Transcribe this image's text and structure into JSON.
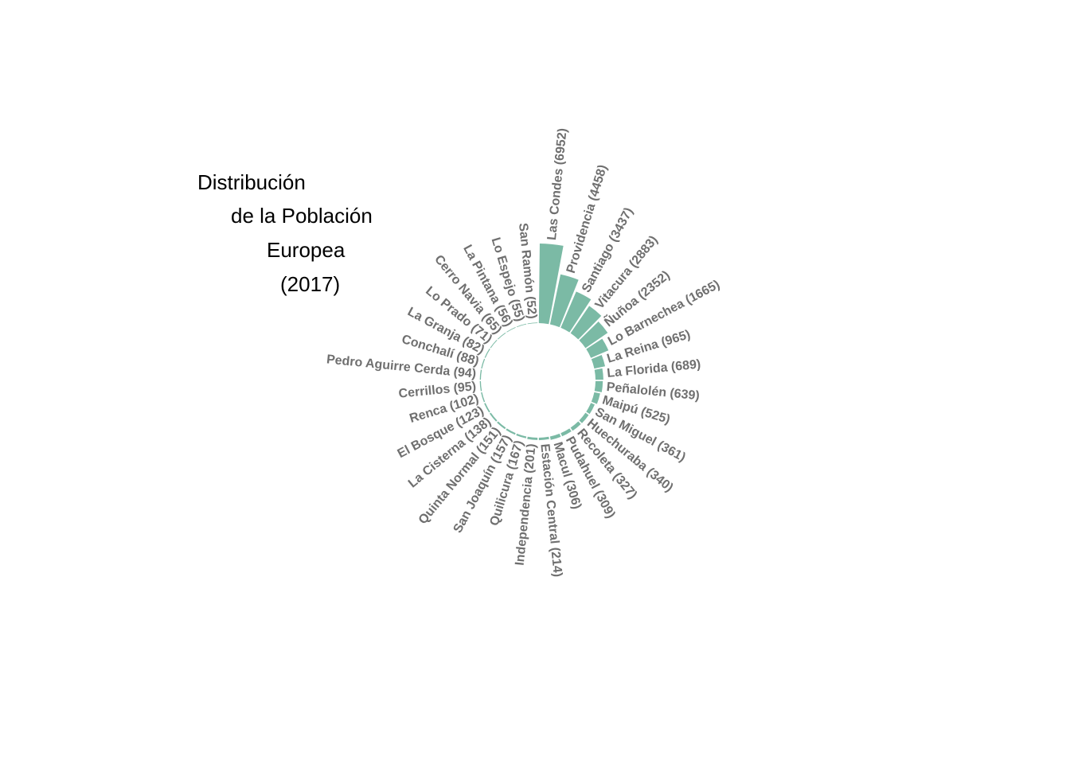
{
  "title_lines": [
    "Distribución",
    "de la Población",
    "Europea",
    "(2017)"
  ],
  "colors": {
    "bar": "#7bbaa5",
    "label": "#6f6f6f",
    "title": "#000000"
  },
  "chart_data": {
    "type": "bar",
    "layout": "circular",
    "title": "Distribución de la Población Europea (2017)",
    "categories": [
      "Las Condes",
      "Providencia",
      "Santiago",
      "Vitacura",
      "Ñuñoa",
      "Lo Barnechea",
      "La Reina",
      "La Florida",
      "Peñalolén",
      "Maipú",
      "San Miguel",
      "Huechuraba",
      "Recoleta",
      "Pudahuel",
      "Macul",
      "Estación Central",
      "Independencia",
      "Quilicura",
      "San Joaquín",
      "Quinta Normal",
      "La Cisterna",
      "El Bosque",
      "Renca",
      "Cerrillos",
      "Pedro Aguirre Cerda",
      "Conchalí",
      "La Granja",
      "Lo Prado",
      "Cerro Navia",
      "La Pintana",
      "Lo Espejo",
      "San Ramón"
    ],
    "values": [
      6952,
      4458,
      3437,
      2883,
      2352,
      1665,
      965,
      689,
      639,
      525,
      361,
      340,
      327,
      309,
      306,
      214,
      201,
      167,
      157,
      151,
      138,
      123,
      102,
      95,
      94,
      88,
      82,
      71,
      65,
      56,
      55,
      52
    ],
    "labels": [
      "Las Condes (6952)",
      "Providencia (4458)",
      "Santiago (3437)",
      "Vitacura (2883)",
      "Ñuñoa (2352)",
      "Lo Barnechea (1665)",
      "La Reina (965)",
      "La Florida (689)",
      "Peñalolén (639)",
      "Maipú (525)",
      "San Miguel (361)",
      "Huechuraba (340)",
      "Recoleta (327)",
      "Pudahuel (309)",
      "Macul (306)",
      "Estación Central (214)",
      "Independencia (201)",
      "Quilicura (167)",
      "San Joaquín (157)",
      "Quinta Normal (151)",
      "La Cisterna (138)",
      "El Bosque (123)",
      "Renca (102)",
      "Cerrillos (95)",
      "Pedro Aguirre Cerda (94)",
      "Conchalí (88)",
      "La Granja (82)",
      "Lo Prado (71)",
      "Cerro Navia (65)",
      "La Pintana (56)",
      "Lo Espejo (55)",
      "San Ramón (52)"
    ],
    "legend": "none",
    "grid": false
  }
}
